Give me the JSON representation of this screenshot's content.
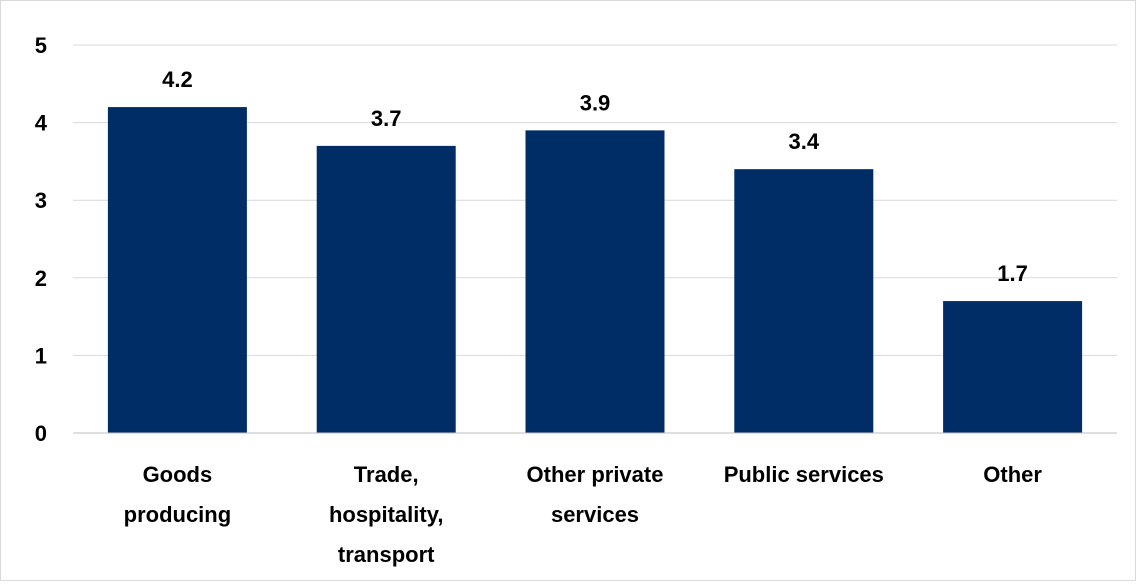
{
  "chart_data": {
    "type": "bar",
    "title": "",
    "xlabel": "",
    "ylabel": "",
    "categories": [
      [
        "Goods",
        "producing"
      ],
      [
        "Trade,",
        "hospitality,",
        "transport"
      ],
      [
        "Other private",
        "services"
      ],
      [
        "Public services"
      ],
      [
        "Other"
      ]
    ],
    "values": [
      4.2,
      3.7,
      3.9,
      3.4,
      1.7
    ],
    "data_labels": [
      "4.2",
      "3.7",
      "3.9",
      "3.4",
      "1.7"
    ],
    "ylim": [
      0,
      5
    ],
    "yticks": [
      0,
      1,
      2,
      3,
      4,
      5
    ],
    "grid": true,
    "legend": "none",
    "colors": {
      "bar": "#002D66",
      "grid": "#d9d9d9",
      "axis": "#bfbfbf",
      "text": "#000000"
    }
  }
}
